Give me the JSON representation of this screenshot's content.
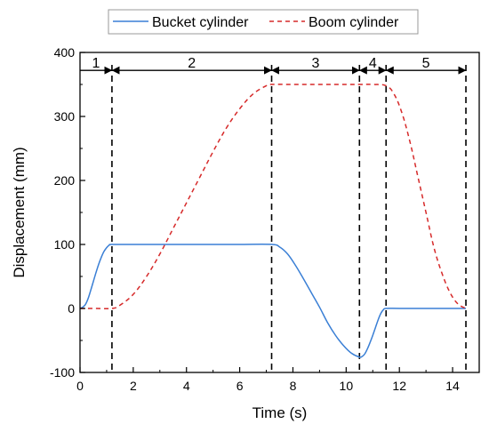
{
  "chart_data": {
    "type": "line",
    "xlabel": "Time (s)",
    "ylabel": "Displacement (mm)",
    "xlim": [
      0,
      15
    ],
    "ylim": [
      -100,
      400
    ],
    "xticks": [
      0,
      2,
      4,
      6,
      8,
      10,
      12,
      14
    ],
    "yticks": [
      -100,
      0,
      100,
      200,
      300,
      400
    ],
    "grid": false,
    "legend": "top",
    "series": [
      {
        "name": "Bucket cylinder",
        "color": "#3a7fd5",
        "dash": "solid",
        "x": [
          0,
          0.1,
          0.2,
          0.3,
          0.4,
          0.5,
          0.6,
          0.7,
          0.8,
          0.9,
          1.0,
          1.1,
          1.2,
          2.0,
          3.0,
          4.0,
          5.0,
          6.0,
          7.2,
          7.5,
          7.8,
          8.1,
          8.4,
          8.7,
          9.0,
          9.3,
          9.6,
          9.9,
          10.2,
          10.5,
          10.6,
          10.7,
          10.8,
          10.9,
          11.0,
          11.1,
          11.2,
          11.3,
          11.4,
          11.5,
          12.0,
          13.0,
          14.0,
          14.5
        ],
        "y": [
          0,
          2,
          6,
          15,
          28,
          42,
          56,
          69,
          80,
          89,
          95,
          99,
          100,
          100,
          100,
          100,
          100,
          100,
          100,
          96,
          85,
          67,
          46,
          24,
          2,
          -22,
          -42,
          -58,
          -70,
          -76,
          -75,
          -71,
          -63,
          -53,
          -42,
          -30,
          -18,
          -8,
          -2,
          0,
          0,
          0,
          0,
          0
        ]
      },
      {
        "name": "Boom cylinder",
        "color": "#d62a2a",
        "dash": "dashed",
        "x": [
          0,
          0.5,
          1.2,
          1.5,
          2.0,
          2.5,
          3.0,
          3.5,
          4.0,
          4.5,
          5.0,
          5.5,
          6.0,
          6.5,
          7.0,
          7.2,
          8.0,
          9.0,
          10.0,
          10.5,
          11.0,
          11.5,
          11.8,
          12.1,
          12.4,
          12.7,
          13.0,
          13.3,
          13.6,
          13.9,
          14.2,
          14.5
        ],
        "y": [
          0,
          0,
          0,
          5,
          22,
          50,
          85,
          125,
          165,
          205,
          245,
          282,
          312,
          335,
          348,
          350,
          350,
          350,
          350,
          350,
          350,
          348,
          335,
          305,
          260,
          205,
          150,
          95,
          55,
          25,
          7,
          0
        ]
      }
    ],
    "phases": {
      "boundaries": [
        0,
        1.2,
        7.2,
        10.5,
        11.5,
        14.5
      ],
      "labels": [
        "1",
        "2",
        "3",
        "4",
        "5"
      ],
      "arrow_y": 372
    }
  }
}
